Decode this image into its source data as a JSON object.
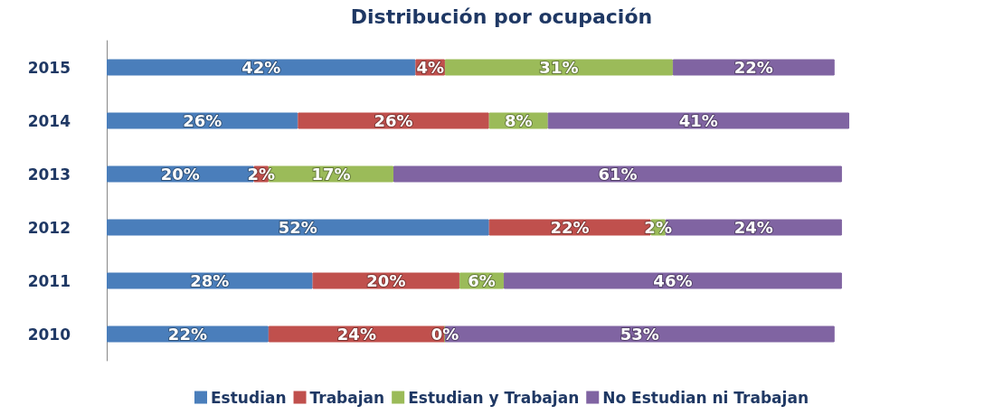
{
  "chart_data": {
    "type": "bar",
    "title": "Distribución por ocupación",
    "orientation": "horizontal",
    "stacked": true,
    "legend": "bottom",
    "categories": [
      "2015",
      "2014",
      "2013",
      "2012",
      "2011",
      "2010"
    ],
    "series": [
      {
        "name": "Estudian",
        "color": "#4a7ebb",
        "values": [
          42,
          26,
          20,
          52,
          28,
          22
        ],
        "value_labels": [
          "42%",
          "26%",
          "20%",
          "52%",
          "28%",
          "22%"
        ]
      },
      {
        "name": "Trabajan",
        "color": "#c0504d",
        "values": [
          4,
          26,
          2,
          22,
          20,
          24
        ],
        "value_labels": [
          "4%",
          "26%",
          "2%",
          "22%",
          "20%",
          "24%"
        ]
      },
      {
        "name": "Estudian y Trabajan",
        "color": "#9bbb59",
        "values": [
          31,
          8,
          17,
          2,
          6,
          0
        ],
        "value_labels": [
          "31%",
          "8%",
          "17%",
          "2%",
          "6%",
          "0%"
        ]
      },
      {
        "name": "No Estudian ni Trabajan",
        "color": "#8064a2",
        "values": [
          22,
          41,
          61,
          24,
          46,
          53
        ],
        "value_labels": [
          "22%",
          "41%",
          "61%",
          "24%",
          "46%",
          "53%"
        ]
      }
    ]
  }
}
